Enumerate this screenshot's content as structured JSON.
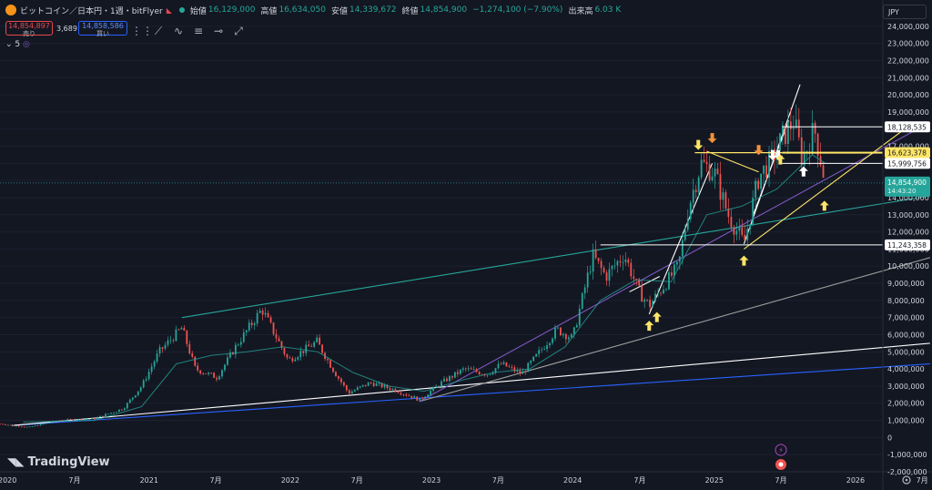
{
  "header": {
    "title": "ビットコイン／日本円・1週・bitFlyer",
    "open_label": "始値",
    "open": "16,129,000",
    "high_label": "高値",
    "high": "16,634,050",
    "low_label": "安値",
    "low": "14,339,672",
    "close_label": "終値",
    "close": "14,854,900",
    "change": "−1,274,100 (−7.90%)",
    "volume_label": "出来高",
    "volume": "6.03 K"
  },
  "quote": {
    "sell_price": "14,854,897",
    "sell_label": "売り",
    "spread": "3,689",
    "buy_price": "14,858,586",
    "buy_label": "買い"
  },
  "interval_tag": "5",
  "currency": "JPY",
  "brand": "TradingView",
  "toolbar_icons": [
    "grip-icon",
    "trend-line-icon",
    "brush-icon",
    "fib-icon",
    "horizontal-ray-icon",
    "measure-icon"
  ],
  "colors": {
    "background": "#131722",
    "up": "#26a69a",
    "down": "#ef5350",
    "price_tag": "#26a69a",
    "yellow": "#ffe566",
    "blue": "#2962ff",
    "teal": "#26a69a",
    "purple": "#7e57c2",
    "white": "#ffffff"
  },
  "chart_data": {
    "type": "candlestick",
    "y_axis": {
      "range": [
        -2000000,
        25000000
      ],
      "ticks": [
        "-2,000,000",
        "-1,000,000",
        "0",
        "1,000,000",
        "2,000,000",
        "3,000,000",
        "4,000,000",
        "5,000,000",
        "6,000,000",
        "7,000,000",
        "8,000,000",
        "9,000,000",
        "10,000,000",
        "11,000,000",
        "12,000,000",
        "13,000,000",
        "14,000,000",
        "15,000,000",
        "16,000,000",
        "17,000,000",
        "18,000,000",
        "19,000,000",
        "20,000,000",
        "21,000,000",
        "22,000,000",
        "23,000,000",
        "24,000,000"
      ],
      "tick_values": [
        -2000000,
        -1000000,
        0,
        1000000,
        2000000,
        3000000,
        4000000,
        5000000,
        6000000,
        7000000,
        8000000,
        9000000,
        10000000,
        11000000,
        12000000,
        13000000,
        14000000,
        15000000,
        16000000,
        17000000,
        18000000,
        19000000,
        20000000,
        21000000,
        22000000,
        23000000,
        24000000
      ]
    },
    "x_axis": {
      "range": [
        "2020-01-01",
        "2026-04-01"
      ],
      "ticks": [
        {
          "label": "2020",
          "date": "2020-01-01"
        },
        {
          "label": "7月",
          "date": "2020-07-01"
        },
        {
          "label": "2021",
          "date": "2021-01-01"
        },
        {
          "label": "7月",
          "date": "2021-07-01"
        },
        {
          "label": "2022",
          "date": "2022-01-01"
        },
        {
          "label": "7月",
          "date": "2022-07-01"
        },
        {
          "label": "2023",
          "date": "2023-01-01"
        },
        {
          "label": "7月",
          "date": "2023-07-01"
        },
        {
          "label": "2024",
          "date": "2024-01-01"
        },
        {
          "label": "7月",
          "date": "2024-07-01"
        },
        {
          "label": "2025",
          "date": "2025-01-01"
        },
        {
          "label": "7月",
          "date": "2025-07-01"
        },
        {
          "label": "2026",
          "date": "2026-01-01"
        },
        {
          "label": "7月",
          "date": "2026-07-01"
        }
      ]
    },
    "price_path": [
      [
        "2020-01-01",
        800000
      ],
      [
        "2020-03-15",
        600000
      ],
      [
        "2020-06-01",
        1000000
      ],
      [
        "2020-09-01",
        1100000
      ],
      [
        "2020-11-15",
        1700000
      ],
      [
        "2021-01-01",
        3000000
      ],
      [
        "2021-02-15",
        5000000
      ],
      [
        "2021-04-15",
        6400000
      ],
      [
        "2021-05-20",
        4000000
      ],
      [
        "2021-07-15",
        3500000
      ],
      [
        "2021-09-01",
        5300000
      ],
      [
        "2021-11-08",
        7500000
      ],
      [
        "2022-01-15",
        4500000
      ],
      [
        "2022-03-30",
        5600000
      ],
      [
        "2022-05-15",
        3800000
      ],
      [
        "2022-06-20",
        2600000
      ],
      [
        "2022-08-15",
        3200000
      ],
      [
        "2022-10-15",
        2800000
      ],
      [
        "2022-12-20",
        2200000
      ],
      [
        "2023-02-15",
        3200000
      ],
      [
        "2023-04-15",
        4000000
      ],
      [
        "2023-06-15",
        3700000
      ],
      [
        "2023-07-20",
        4300000
      ],
      [
        "2023-09-10",
        3700000
      ],
      [
        "2023-10-20",
        4800000
      ],
      [
        "2023-12-10",
        6300000
      ],
      [
        "2024-01-20",
        5800000
      ],
      [
        "2024-03-12",
        10600000
      ],
      [
        "2024-04-15",
        9400000
      ],
      [
        "2024-06-01",
        10700000
      ],
      [
        "2024-07-10",
        8500000
      ],
      [
        "2024-08-05",
        7700000
      ],
      [
        "2024-09-10",
        8800000
      ],
      [
        "2024-10-20",
        10000000
      ],
      [
        "2024-11-15",
        13500000
      ],
      [
        "2024-12-17",
        16000000
      ],
      [
        "2025-01-20",
        15500000
      ],
      [
        "2025-02-25",
        13000000
      ],
      [
        "2025-04-07",
        11300000
      ],
      [
        "2025-05-15",
        15200000
      ],
      [
        "2025-06-20",
        16300000
      ],
      [
        "2025-07-15",
        17500000
      ],
      [
        "2025-08-14",
        18500000
      ],
      [
        "2025-09-05",
        16200000
      ],
      [
        "2025-10-06",
        18000000
      ],
      [
        "2025-10-20",
        16500000
      ],
      [
        "2025-11-03",
        14854900
      ]
    ],
    "ma_path": [
      [
        "2020-03-01",
        900000
      ],
      [
        "2020-09-01",
        1000000
      ],
      [
        "2021-01-01",
        1800000
      ],
      [
        "2021-04-01",
        4300000
      ],
      [
        "2021-07-01",
        4800000
      ],
      [
        "2021-10-01",
        5000000
      ],
      [
        "2022-01-01",
        5300000
      ],
      [
        "2022-04-01",
        5000000
      ],
      [
        "2022-07-01",
        3800000
      ],
      [
        "2022-10-01",
        3000000
      ],
      [
        "2023-01-01",
        2700000
      ],
      [
        "2023-04-01",
        3300000
      ],
      [
        "2023-07-01",
        3800000
      ],
      [
        "2023-10-01",
        4000000
      ],
      [
        "2024-01-01",
        5300000
      ],
      [
        "2024-04-01",
        8000000
      ],
      [
        "2024-07-01",
        9200000
      ],
      [
        "2024-10-01",
        9100000
      ],
      [
        "2025-01-01",
        13000000
      ],
      [
        "2025-04-01",
        13500000
      ],
      [
        "2025-07-01",
        14500000
      ],
      [
        "2025-10-01",
        16500000
      ],
      [
        "2025-11-03",
        16000000
      ]
    ],
    "levels": [
      {
        "label": "18,128,535",
        "value": 18128535,
        "color": "#ffffff",
        "tag_bg": "#ffffff",
        "tag_fg": "#131722"
      },
      {
        "label": "16,623,378",
        "value": 16623378,
        "color": "#ffe566",
        "tag_bg": "#ffe566",
        "tag_fg": "#131722"
      },
      {
        "label": "15,999,756",
        "value": 15999756,
        "color": "#ffffff",
        "tag_bg": "#ffffff",
        "tag_fg": "#131722"
      },
      {
        "label": "11,243,358",
        "value": 11243358,
        "color": "#ffffff",
        "tag_bg": "#ffffff",
        "tag_fg": "#131722"
      }
    ],
    "current_price": {
      "label": "14,854,900",
      "countdown": "14:43:20",
      "value": 14854900
    },
    "trend_lines": [
      {
        "color": "#2962ff",
        "from": [
          "2020-02-01",
          700000
        ],
        "to": [
          "2026-08-01",
          4300000
        ]
      },
      {
        "color": "#ffffff",
        "from": [
          "2020-02-01",
          700000
        ],
        "to": [
          "2026-08-01",
          5500000
        ]
      },
      {
        "color": "#9e9e9e",
        "from": [
          "2022-12-20",
          2100000
        ],
        "to": [
          "2026-08-01",
          10500000
        ]
      },
      {
        "color": "#7e57c2",
        "from": [
          "2022-12-20",
          2100000
        ],
        "to": [
          "2026-08-01",
          18400000
        ]
      },
      {
        "color": "#26a69a",
        "from": [
          "2021-04-15",
          7000000
        ],
        "to": [
          "2026-08-01",
          14100000
        ]
      },
      {
        "color": "#ffe566",
        "from": [
          "2025-04-07",
          11000000
        ],
        "to": [
          "2026-06-20",
          18400000
        ]
      },
      {
        "color": "#ffffff",
        "from": [
          "2024-08-05",
          7200000
        ],
        "to": [
          "2025-01-15",
          16000000
        ]
      },
      {
        "color": "#ffffff",
        "from": [
          "2025-04-07",
          11300000
        ],
        "to": [
          "2025-08-30",
          20600000
        ]
      },
      {
        "color": "#ffffff",
        "from": [
          "2025-05-01",
          13000000
        ],
        "to": [
          "2025-08-01",
          18500000
        ]
      },
      {
        "color": "#ffe566",
        "from": [
          "2025-01-01",
          16700000
        ],
        "to": [
          "2025-05-15",
          15500000
        ]
      },
      {
        "color": "#ffffff",
        "from": [
          "2024-06-15",
          8500000
        ],
        "to": [
          "2024-09-01",
          9400000
        ]
      }
    ],
    "markers": [
      {
        "kind": "up",
        "color": "#ffe566",
        "at": [
          "2024-08-05",
          6500000
        ]
      },
      {
        "kind": "up",
        "color": "#ffe566",
        "at": [
          "2024-08-25",
          7000000
        ]
      },
      {
        "kind": "down",
        "color": "#ffe566",
        "at": [
          "2024-12-10",
          17100000
        ]
      },
      {
        "kind": "down",
        "color": "#f29339",
        "at": [
          "2025-01-15",
          17500000
        ]
      },
      {
        "kind": "down",
        "color": "#f29339",
        "at": [
          "2025-05-15",
          16800000
        ]
      },
      {
        "kind": "down",
        "color": "#ffffff",
        "at": [
          "2025-06-20",
          16500000
        ]
      },
      {
        "kind": "down",
        "color": "#ffffff",
        "at": [
          "2025-07-05",
          16500000
        ]
      },
      {
        "kind": "up",
        "color": "#ffe566",
        "at": [
          "2025-07-10",
          16200000
        ]
      },
      {
        "kind": "up",
        "color": "#ffe566",
        "at": [
          "2025-04-07",
          10300000
        ]
      },
      {
        "kind": "up",
        "color": "#ffffff",
        "at": [
          "2025-09-08",
          15500000
        ]
      },
      {
        "kind": "up",
        "color": "#ffe566",
        "at": [
          "2025-11-01",
          13500000
        ]
      }
    ]
  }
}
